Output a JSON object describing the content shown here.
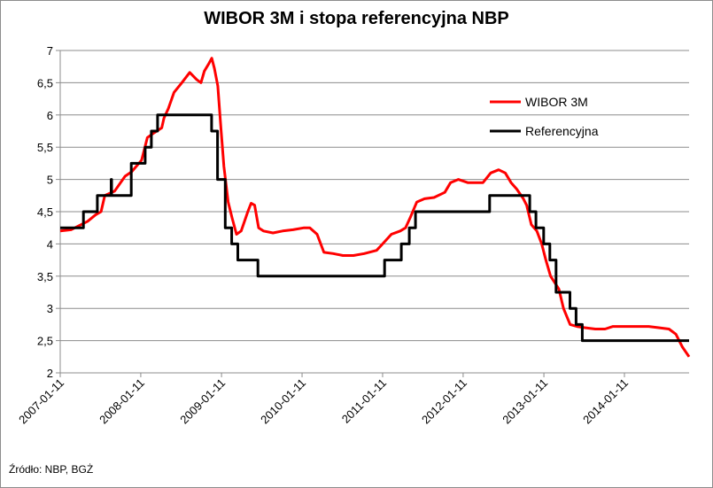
{
  "chart_data": {
    "type": "line",
    "title": "WIBOR 3M i stopa referencyjna NBP",
    "source": "Źródło: NBP, BGŻ",
    "x_ticks": [
      "2007-01-11",
      "2008-01-11",
      "2009-01-11",
      "2010-01-11",
      "2011-01-11",
      "2012-01-11",
      "2013-01-11",
      "2014-01-11"
    ],
    "y_ticks": [
      "2",
      "2,5",
      "3",
      "3,5",
      "4",
      "4,5",
      "5",
      "5,5",
      "6",
      "6,5",
      "7"
    ],
    "xlim": [
      "2007-01-11",
      "2014-10-31"
    ],
    "ylim": [
      2,
      7
    ],
    "grid": "horizontal",
    "legend_position": "right",
    "series": [
      {
        "name": "WIBOR 3M",
        "color": "#ff0000",
        "points": [
          [
            "2007-01-11",
            4.2
          ],
          [
            "2007-03-01",
            4.22
          ],
          [
            "2007-05-15",
            4.35
          ],
          [
            "2007-06-20",
            4.45
          ],
          [
            "2007-07-15",
            4.5
          ],
          [
            "2007-08-01",
            4.75
          ],
          [
            "2007-09-15",
            4.82
          ],
          [
            "2007-11-01",
            5.05
          ],
          [
            "2007-12-01",
            5.12
          ],
          [
            "2008-01-15",
            5.3
          ],
          [
            "2008-02-10",
            5.65
          ],
          [
            "2008-03-10",
            5.72
          ],
          [
            "2008-04-15",
            5.8
          ],
          [
            "2008-04-25",
            5.95
          ],
          [
            "2008-05-15",
            6.1
          ],
          [
            "2008-06-10",
            6.35
          ],
          [
            "2008-07-15",
            6.5
          ],
          [
            "2008-08-20",
            6.66
          ],
          [
            "2008-09-20",
            6.55
          ],
          [
            "2008-10-10",
            6.5
          ],
          [
            "2008-10-25",
            6.68
          ],
          [
            "2008-11-15",
            6.8
          ],
          [
            "2008-11-28",
            6.88
          ],
          [
            "2008-12-10",
            6.72
          ],
          [
            "2008-12-25",
            6.45
          ],
          [
            "2009-01-08",
            5.8
          ],
          [
            "2009-01-22",
            5.2
          ],
          [
            "2009-02-10",
            4.65
          ],
          [
            "2009-02-28",
            4.4
          ],
          [
            "2009-03-20",
            4.15
          ],
          [
            "2009-04-10",
            4.2
          ],
          [
            "2009-05-10",
            4.5
          ],
          [
            "2009-05-25",
            4.63
          ],
          [
            "2009-06-10",
            4.6
          ],
          [
            "2009-06-28",
            4.25
          ],
          [
            "2009-07-20",
            4.2
          ],
          [
            "2009-09-01",
            4.17
          ],
          [
            "2009-10-15",
            4.2
          ],
          [
            "2009-12-01",
            4.22
          ],
          [
            "2010-01-20",
            4.25
          ],
          [
            "2010-02-15",
            4.25
          ],
          [
            "2010-03-20",
            4.15
          ],
          [
            "2010-04-20",
            3.87
          ],
          [
            "2010-06-01",
            3.85
          ],
          [
            "2010-07-15",
            3.82
          ],
          [
            "2010-09-01",
            3.82
          ],
          [
            "2010-10-20",
            3.85
          ],
          [
            "2010-12-15",
            3.9
          ],
          [
            "2011-01-11",
            4.0
          ],
          [
            "2011-02-20",
            4.15
          ],
          [
            "2011-04-01",
            4.2
          ],
          [
            "2011-04-25",
            4.25
          ],
          [
            "2011-05-15",
            4.4
          ],
          [
            "2011-06-15",
            4.65
          ],
          [
            "2011-07-20",
            4.7
          ],
          [
            "2011-09-01",
            4.72
          ],
          [
            "2011-10-20",
            4.8
          ],
          [
            "2011-11-15",
            4.95
          ],
          [
            "2011-12-20",
            5.0
          ],
          [
            "2012-02-01",
            4.95
          ],
          [
            "2012-03-15",
            4.95
          ],
          [
            "2012-04-10",
            4.95
          ],
          [
            "2012-05-15",
            5.1
          ],
          [
            "2012-06-20",
            5.15
          ],
          [
            "2012-07-20",
            5.1
          ],
          [
            "2012-08-15",
            4.95
          ],
          [
            "2012-09-10",
            4.85
          ],
          [
            "2012-10-10",
            4.7
          ],
          [
            "2012-10-25",
            4.6
          ],
          [
            "2012-11-15",
            4.3
          ],
          [
            "2012-12-10",
            4.2
          ],
          [
            "2013-01-01",
            4.0
          ],
          [
            "2013-01-20",
            3.75
          ],
          [
            "2013-02-10",
            3.5
          ],
          [
            "2013-03-01",
            3.4
          ],
          [
            "2013-03-20",
            3.3
          ],
          [
            "2013-04-10",
            3.0
          ],
          [
            "2013-05-10",
            2.75
          ],
          [
            "2013-06-10",
            2.72
          ],
          [
            "2013-07-15",
            2.7
          ],
          [
            "2013-09-01",
            2.68
          ],
          [
            "2013-10-15",
            2.68
          ],
          [
            "2013-11-20",
            2.72
          ],
          [
            "2014-01-15",
            2.72
          ],
          [
            "2014-03-01",
            2.72
          ],
          [
            "2014-05-01",
            2.72
          ],
          [
            "2014-06-15",
            2.7
          ],
          [
            "2014-08-01",
            2.68
          ],
          [
            "2014-09-01",
            2.6
          ],
          [
            "2014-10-01",
            2.4
          ],
          [
            "2014-10-31",
            2.25
          ]
        ]
      },
      {
        "name": "Referencyjna",
        "color": "#000000",
        "step": true,
        "points": [
          [
            "2007-01-11",
            4.25
          ],
          [
            "2007-04-26",
            4.5
          ],
          [
            "2007-06-28",
            4.75
          ],
          [
            "2007-09-01",
            4.75
          ],
          [
            "2007-08-30",
            5.0
          ],
          [
            "2007-11-29",
            5.25
          ],
          [
            "2008-01-31",
            5.5
          ],
          [
            "2008-02-28",
            5.75
          ],
          [
            "2008-03-27",
            6.0
          ],
          [
            "2008-06-26",
            6.0
          ],
          [
            "2008-11-27",
            5.75
          ],
          [
            "2008-12-24",
            5.0
          ],
          [
            "2009-01-28",
            4.25
          ],
          [
            "2009-02-26",
            4.0
          ],
          [
            "2009-03-26",
            3.75
          ],
          [
            "2009-06-25",
            3.5
          ],
          [
            "2011-01-20",
            3.75
          ],
          [
            "2011-04-06",
            4.0
          ],
          [
            "2011-05-12",
            4.25
          ],
          [
            "2011-06-09",
            4.5
          ],
          [
            "2012-05-10",
            4.75
          ],
          [
            "2012-11-08",
            4.5
          ],
          [
            "2012-12-06",
            4.25
          ],
          [
            "2013-01-10",
            4.0
          ],
          [
            "2013-02-07",
            3.75
          ],
          [
            "2013-03-07",
            3.25
          ],
          [
            "2013-05-09",
            3.0
          ],
          [
            "2013-06-06",
            2.75
          ],
          [
            "2013-07-04",
            2.5
          ],
          [
            "2014-10-31",
            2.5
          ]
        ]
      }
    ]
  }
}
